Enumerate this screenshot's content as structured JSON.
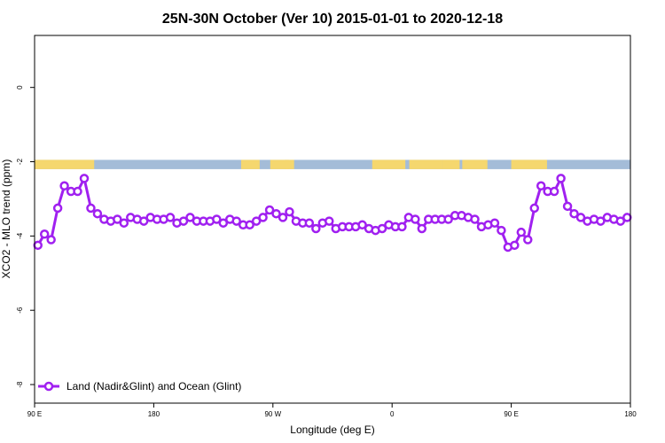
{
  "chart_data": {
    "type": "line",
    "title": "25N-30N October (Ver 10)   2015-01-01 to 2020-12-18",
    "xlabel": "Longitude (deg E)",
    "ylabel": "XCO2 - MLO trend (ppm)",
    "x_ticks": [
      {
        "value": 90,
        "label": "90 E"
      },
      {
        "value": 180,
        "label": "180"
      },
      {
        "value": 270,
        "label": "90 W"
      },
      {
        "value": 360,
        "label": "0"
      },
      {
        "value": 450,
        "label": "90 E"
      },
      {
        "value": 540,
        "label": "180"
      }
    ],
    "y_ticks": [
      0,
      -2,
      -4,
      -6,
      -8
    ],
    "xlim": [
      90,
      540
    ],
    "ylim": [
      -8.5,
      1.4
    ],
    "legend": {
      "position": "bottom-left",
      "label": "Land (Nadir&Glint) and Ocean (Glint)"
    },
    "colors": {
      "series": "#a020f0",
      "land": "#f5d76e",
      "ocean": "#a4bcd8"
    },
    "land_mask": {
      "y_range": [
        -2.2,
        -1.95
      ],
      "land_segments": [
        [
          90,
          135
        ],
        [
          246,
          260
        ],
        [
          268,
          282
        ],
        [
          279,
          286
        ],
        [
          345,
          370
        ],
        [
          373,
          398
        ],
        [
          398,
          411
        ],
        [
          413,
          432
        ],
        [
          450,
          477
        ]
      ]
    },
    "series": [
      {
        "name": "Land (Nadir&Glint) and Ocean (Glint)",
        "x": [
          92.5,
          97.5,
          102.5,
          107.5,
          112.5,
          117.5,
          122.5,
          127.5,
          132.5,
          137.5,
          142.5,
          147.5,
          152.5,
          157.5,
          162.5,
          167.5,
          172.5,
          177.5,
          182.5,
          187.5,
          192.5,
          197.5,
          202.5,
          207.5,
          212.5,
          217.5,
          222.5,
          227.5,
          232.5,
          237.5,
          242.5,
          247.5,
          252.5,
          257.5,
          262.5,
          267.5,
          272.5,
          277.5,
          282.5,
          287.5,
          292.5,
          297.5,
          302.5,
          307.5,
          312.5,
          317.5,
          322.5,
          327.5,
          332.5,
          337.5,
          342.5,
          347.5,
          352.5,
          357.5,
          362.5,
          367.5,
          372.5,
          377.5,
          382.5,
          387.5,
          392.5,
          397.5,
          402.5,
          407.5,
          412.5,
          417.5,
          422.5,
          427.5,
          432.5,
          437.5,
          442.5,
          447.5,
          452.5,
          457.5,
          462.5,
          467.5,
          472.5,
          477.5,
          482.5,
          487.5,
          492.5,
          497.5,
          502.5,
          507.5,
          512.5,
          517.5,
          522.5,
          527.5,
          532.5,
          537.5
        ],
        "values": [
          -4.25,
          -3.95,
          -4.1,
          -3.25,
          -2.65,
          -2.8,
          -2.8,
          -2.45,
          -3.25,
          -3.4,
          -3.55,
          -3.6,
          -3.55,
          -3.65,
          -3.5,
          -3.55,
          -3.6,
          -3.5,
          -3.55,
          -3.55,
          -3.5,
          -3.65,
          -3.6,
          -3.5,
          -3.6,
          -3.6,
          -3.6,
          -3.55,
          -3.65,
          -3.55,
          -3.6,
          -3.7,
          -3.7,
          -3.6,
          -3.5,
          -3.3,
          -3.4,
          -3.5,
          -3.35,
          -3.6,
          -3.65,
          -3.65,
          -3.8,
          -3.65,
          -3.6,
          -3.8,
          -3.75,
          -3.75,
          -3.75,
          -3.7,
          -3.8,
          -3.85,
          -3.8,
          -3.7,
          -3.75,
          -3.75,
          -3.5,
          -3.55,
          -3.8,
          -3.55,
          -3.55,
          -3.55,
          -3.55,
          -3.45,
          -3.45,
          -3.5,
          -3.55,
          -3.75,
          -3.7,
          -3.65,
          -3.85,
          -4.3,
          -4.25,
          -3.9,
          -4.1,
          -3.25,
          -2.65,
          -2.8,
          -2.8,
          -2.45,
          -3.2,
          -3.4,
          -3.5,
          -3.6,
          -3.55,
          -3.6,
          -3.5,
          -3.55,
          -3.6,
          -3.5
        ]
      }
    ]
  }
}
